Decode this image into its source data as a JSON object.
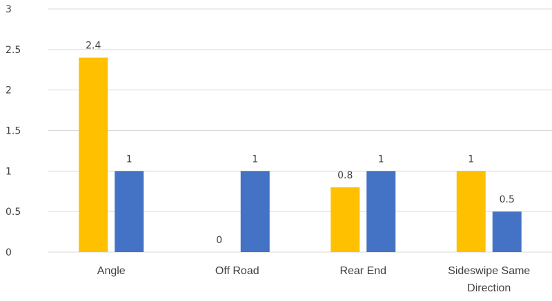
{
  "chart_data": {
    "type": "bar",
    "title": "",
    "xlabel": "",
    "ylabel": "",
    "categories": [
      [
        "Angle"
      ],
      [
        "Off Road"
      ],
      [
        "Rear End"
      ],
      [
        "Sideswipe Same",
        "Direction"
      ]
    ],
    "series": [
      {
        "values": [
          2.4,
          0,
          0.8,
          1
        ],
        "color": "#FFC000"
      },
      {
        "values": [
          1,
          1,
          1,
          0.5
        ],
        "color": "#4472C4"
      }
    ],
    "data_labels": [
      [
        "2.4",
        "0",
        "0.8",
        "1"
      ],
      [
        "1",
        "1",
        "1",
        "0.5"
      ]
    ],
    "ylim": [
      0,
      3
    ],
    "yticks": [
      "0",
      "0.5",
      "1",
      "1.5",
      "2",
      "2.5",
      "3"
    ],
    "grid": true,
    "legend": "none"
  }
}
